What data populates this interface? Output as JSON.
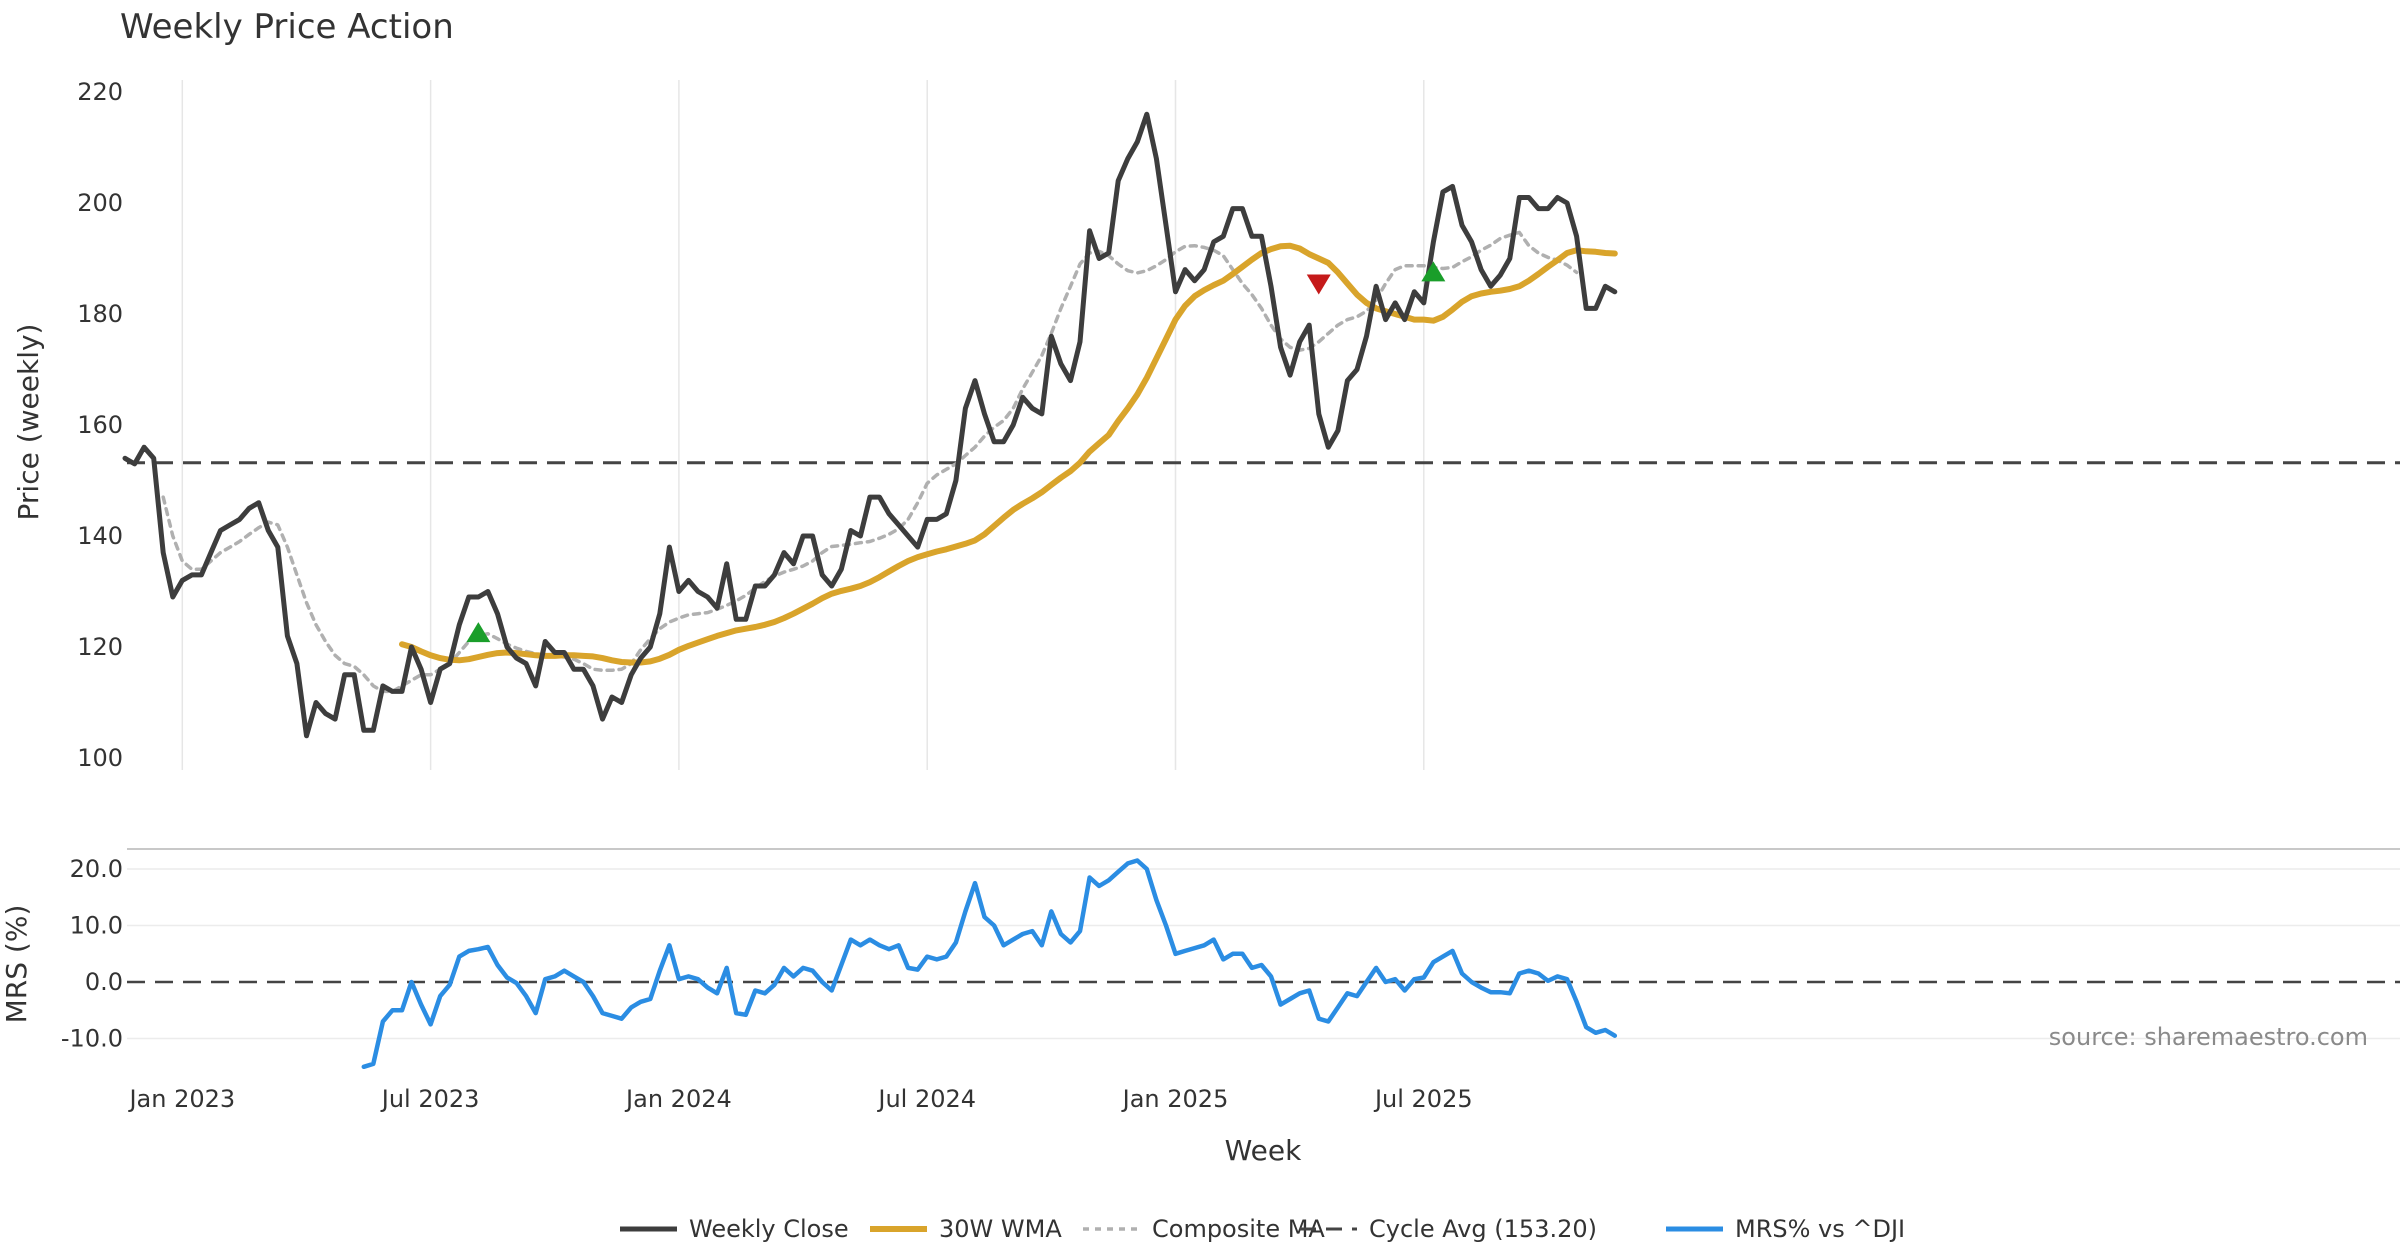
{
  "chart_data": {
    "type": "line",
    "title": "Weekly Price Action",
    "xlabel": "Week",
    "x_tick_labels": [
      "Jan 2023",
      "Jul 2023",
      "Jan 2024",
      "Jul 2024",
      "Jan 2025",
      "Jul 2025"
    ],
    "x_tick_weeks": [
      6,
      32,
      58,
      84,
      110,
      136
    ],
    "legend_position": "bottom",
    "source": "source: sharemaestro.com",
    "price_panel": {
      "ylabel": "Price (weekly)",
      "ylim": [
        100,
        220
      ],
      "yticks": [
        "100",
        "120",
        "140",
        "160",
        "180",
        "200",
        "220"
      ],
      "cycle_avg": 153.2,
      "series": [
        {
          "name": "Weekly Close",
          "color": "#3d3d3d",
          "start_week": 0,
          "values": [
            154,
            153,
            156,
            154,
            137,
            129,
            132,
            133,
            133,
            137,
            141,
            142,
            143,
            145,
            146,
            141,
            138,
            122,
            117,
            104,
            110,
            108,
            107,
            115,
            115,
            105,
            105,
            113,
            112,
            112,
            120,
            116,
            110,
            116,
            117,
            124,
            129,
            129,
            130,
            126,
            120,
            118,
            117,
            113,
            121,
            119,
            119,
            116,
            116,
            113,
            107,
            111,
            110,
            115,
            118,
            120,
            126,
            138,
            130,
            132,
            130,
            129,
            127,
            135,
            125,
            125,
            131,
            131,
            133,
            137,
            135,
            140,
            140,
            133,
            131,
            134,
            141,
            140,
            147,
            147,
            144,
            142,
            140,
            138,
            143,
            143,
            144,
            150,
            163,
            168,
            162,
            157,
            157,
            160,
            165,
            163,
            162,
            176,
            171,
            168,
            175,
            195,
            190,
            191,
            204,
            208,
            211,
            216,
            208,
            196,
            184,
            188,
            186,
            188,
            193,
            194,
            199,
            199,
            194,
            194,
            185,
            174,
            169,
            175,
            178,
            162,
            156,
            159,
            168,
            170,
            176,
            185,
            179,
            182,
            179,
            184,
            182,
            193,
            202,
            203,
            196,
            193,
            188,
            185,
            187,
            190,
            201,
            201,
            199,
            199,
            201,
            200,
            194,
            181,
            181,
            185,
            184
          ]
        },
        {
          "name": "30W WMA",
          "color": "#d9a42b",
          "start_week": 29,
          "values": [
            120.5,
            120,
            119.2,
            118.5,
            118,
            117.7,
            117.6,
            117.8,
            118.2,
            118.6,
            118.9,
            119,
            118.9,
            118.7,
            118.5,
            118.4,
            118.4,
            118.5,
            118.5,
            118.4,
            118.3,
            118,
            117.6,
            117.3,
            117.2,
            117.2,
            117.4,
            117.9,
            118.6,
            119.5,
            120.2,
            120.8,
            121.4,
            122,
            122.5,
            123,
            123.3,
            123.6,
            124,
            124.5,
            125.2,
            126,
            126.9,
            127.8,
            128.8,
            129.6,
            130.1,
            130.5,
            131,
            131.7,
            132.6,
            133.6,
            134.6,
            135.5,
            136.2,
            136.7,
            137.2,
            137.6,
            138.1,
            138.6,
            139.2,
            140.3,
            141.8,
            143.3,
            144.7,
            145.8,
            146.8,
            147.9,
            149.2,
            150.5,
            151.7,
            153.2,
            155.2,
            156.7,
            158.2,
            160.7,
            163,
            165.5,
            168.5,
            172,
            175.5,
            179,
            181.5,
            183.2,
            184.3,
            185.2,
            186,
            187.2,
            188.5,
            189.8,
            191,
            191.7,
            192.2,
            192.3,
            191.8,
            190.8,
            190,
            189.2,
            187.5,
            185.5,
            183.5,
            182,
            181,
            180.5,
            180,
            179.5,
            179,
            179,
            178.8,
            179.5,
            180.8,
            182.2,
            183.2,
            183.7,
            184,
            184.2,
            184.5,
            185,
            186,
            187.2,
            188.5,
            189.7,
            191,
            191.5,
            191.3,
            191.2,
            191,
            190.9
          ]
        },
        {
          "name": "Composite MA",
          "color": "#b0b0b0",
          "start_week": 4,
          "values": [
            147,
            140,
            135.5,
            134,
            134,
            135.5,
            137,
            138,
            139,
            140.3,
            141.5,
            142.5,
            142,
            138,
            133,
            128,
            124,
            121,
            118.5,
            117,
            116.5,
            115,
            113,
            112,
            112,
            113,
            114,
            115,
            115,
            116,
            117,
            119,
            121,
            122,
            122.4,
            121.5,
            120.5,
            119.8,
            119.2,
            118.8,
            118.5,
            118.4,
            118.2,
            117.8,
            117,
            116,
            115.8,
            115.8,
            116,
            117,
            119.5,
            121.5,
            123.3,
            124.5,
            125.2,
            125.8,
            126,
            126.2,
            126.8,
            127.5,
            128.3,
            129.3,
            130.6,
            131.8,
            132.8,
            133.5,
            134,
            134.6,
            135.5,
            137,
            138.1,
            138.3,
            138.5,
            138.8,
            139,
            139.6,
            140.3,
            141.3,
            143,
            146,
            149.5,
            151,
            152,
            153,
            154.5,
            156,
            158,
            159.6,
            160.8,
            163,
            166.5,
            169.5,
            172.5,
            176.5,
            181,
            185,
            189,
            191,
            191.3,
            190.5,
            189,
            187.8,
            187.4,
            187.8,
            188.7,
            189.8,
            191.2,
            192.2,
            192.3,
            192,
            191.5,
            190.5,
            188,
            185.5,
            183.5,
            181,
            178,
            175.5,
            174,
            173.5,
            173.8,
            175,
            176.5,
            178,
            179,
            179.5,
            180.5,
            182.5,
            185.5,
            188,
            188.7,
            188.7,
            188.7,
            188.4,
            188.2,
            188.4,
            189.4,
            190.3,
            191.5,
            192.4,
            193.6,
            194.2,
            194.7,
            192.3,
            191,
            190.2,
            189.7,
            188.8,
            187.5
          ]
        },
        {
          "name": "Cycle Avg (153.20)",
          "color": "#444444",
          "dashed": true,
          "constant": 153.2
        }
      ],
      "signals": [
        {
          "type": "buy",
          "week": 37,
          "price": 122.5,
          "color": "#1a9e2a"
        },
        {
          "type": "sell",
          "week": 125,
          "price": 185.5,
          "color": "#c51a1a"
        },
        {
          "type": "buy",
          "week": 137,
          "price": 187.5,
          "color": "#1a9e2a"
        }
      ]
    },
    "mrs_panel": {
      "ylabel": "MRS (%)",
      "ylim": [
        -15,
        22
      ],
      "yticks": [
        "-10.0",
        "0.0",
        "10.0",
        "20.0"
      ],
      "series": [
        {
          "name": "MRS% vs ^DJI",
          "color": "#2b8de3",
          "start_week": 25,
          "values": [
            -15,
            -14.5,
            -7,
            -5,
            -5,
            0,
            -4,
            -7.5,
            -2.5,
            -0.5,
            4.5,
            5.5,
            5.8,
            6.2,
            3,
            0.8,
            -0.2,
            -2.5,
            -5.5,
            0.5,
            1,
            2,
            1,
            0,
            -2.5,
            -5.5,
            -6,
            -6.5,
            -4.5,
            -3.5,
            -3,
            2,
            6.5,
            0.5,
            1,
            0.5,
            -1,
            -2,
            2.5,
            -5.5,
            -5.8,
            -1.5,
            -2,
            -0.5,
            2.5,
            1,
            2.5,
            2,
            0,
            -1.5,
            3,
            7.5,
            6.5,
            7.5,
            6.5,
            5.8,
            6.5,
            2.5,
            2.2,
            4.5,
            4,
            4.5,
            7,
            12.5,
            17.5,
            11.5,
            10,
            6.5,
            7.5,
            8.5,
            9,
            6.5,
            12.5,
            8.5,
            7,
            9,
            18.5,
            17,
            18,
            19.5,
            21,
            21.5,
            20,
            14.5,
            10,
            5,
            5.5,
            6,
            6.5,
            7.5,
            4,
            5,
            5,
            2.5,
            3,
            1,
            -4,
            -3,
            -2,
            -1.5,
            -6.5,
            -7,
            -4.5,
            -2,
            -2.5,
            0,
            2.5,
            0,
            0.5,
            -1.5,
            0.5,
            0.8,
            3.5,
            4.5,
            5.5,
            1.5,
            0,
            -1,
            -1.8,
            -1.8,
            -2,
            1.5,
            2,
            1.5,
            0.2,
            1,
            0.5,
            -3.5,
            -8,
            -9,
            -8.5,
            -9.5
          ]
        }
      ]
    }
  }
}
